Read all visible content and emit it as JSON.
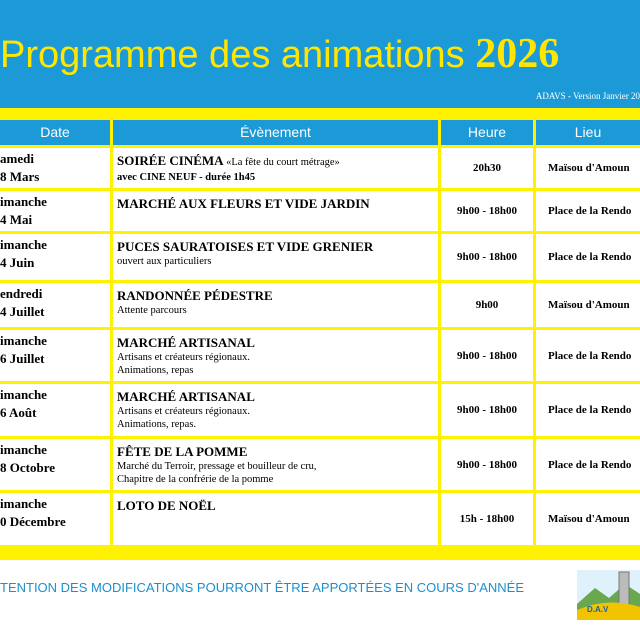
{
  "header": {
    "title": "Programme des animations",
    "year": "2026",
    "version": "ADAVS - Version Janvier 20"
  },
  "table": {
    "columns": [
      "Date",
      "Évènement",
      "Heure",
      "Lieu"
    ],
    "rows": [
      {
        "date": [
          "amedi",
          "8 Mars"
        ],
        "title": "SOIRÉE CINÉMA",
        "title_extra": "«La fête du court métrage»",
        "details": [
          "avec CINE NEUF - durée 1h45"
        ],
        "heure": "20h30",
        "lieu": "Maïsou d'Amoun"
      },
      {
        "date": [
          "imanche",
          "4 Mai"
        ],
        "title": "MARCHÉ AUX FLEURS ET VIDE JARDIN",
        "details": [],
        "heure": "9h00 - 18h00",
        "lieu": "Place de la Rendo"
      },
      {
        "date": [
          "imanche",
          "4 Juin"
        ],
        "title": "PUCES SAURATOISES ET VIDE GRENIER",
        "details": [
          "ouvert aux particuliers"
        ],
        "heure": "9h00 - 18h00",
        "lieu": "Place de la Rendo"
      },
      {
        "date": [
          "endredi",
          "4 Juillet"
        ],
        "title": "RANDONNÉE PÉDESTRE",
        "details": [
          "Attente parcours"
        ],
        "heure": "9h00",
        "lieu": "Maïsou d'Amoun"
      },
      {
        "date": [
          "imanche",
          "6 Juillet"
        ],
        "title": "MARCHÉ ARTISANAL",
        "details": [
          "Artisans et créateurs régionaux.",
          "Animations, repas"
        ],
        "heure": "9h00 - 18h00",
        "lieu": "Place de la Rendo"
      },
      {
        "date": [
          "imanche",
          "6 Août"
        ],
        "title": "MARCHÉ ARTISANAL",
        "details": [
          "Artisans et créateurs régionaux.",
          "Animations, repas."
        ],
        "heure": "9h00 - 18h00",
        "lieu": "Place de la Rendo"
      },
      {
        "date": [
          "imanche",
          "8 Octobre"
        ],
        "title": "FÊTE DE LA POMME",
        "details": [
          "Marché du Terroir, pressage et bouilleur de cru,",
          "Chapitre de la confrérie de la pomme"
        ],
        "heure": "9h00 - 18h00",
        "lieu": "Place de la Rendo"
      },
      {
        "date": [
          "imanche",
          "0 Décembre"
        ],
        "title": "LOTO DE NOËL",
        "details": [],
        "heure": "15h - 18h00",
        "lieu": "Maïsou d'Amoun"
      }
    ]
  },
  "footer": {
    "note": "TENTION DES MODIFICATIONS POURRONT ÊTRE APPORTÉES EN COURS D'ANNÉE"
  }
}
